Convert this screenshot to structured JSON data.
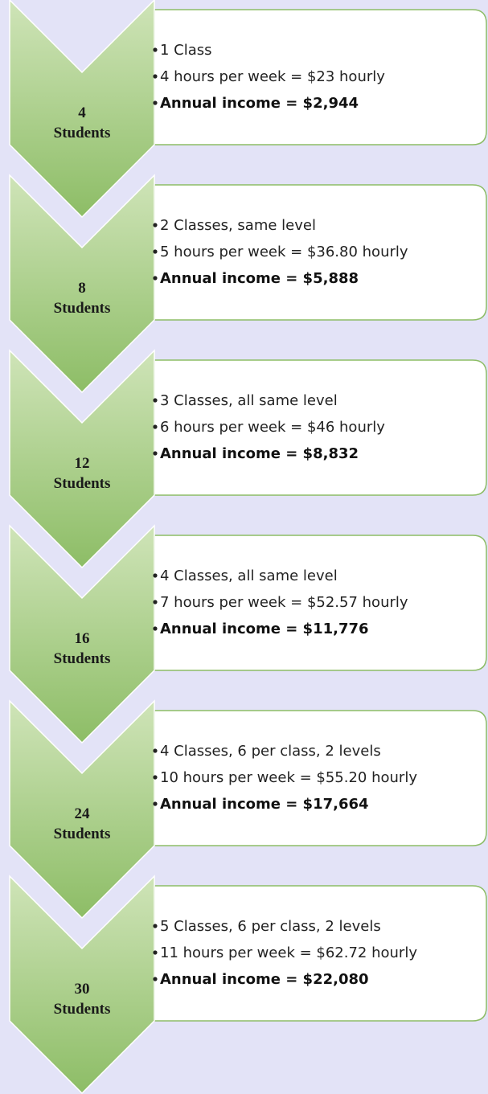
{
  "stages": [
    {
      "count": "4",
      "unit": "Students",
      "bullets": [
        "1 Class",
        "4 hours per week = $23 hourly",
        "Annual income = $2,944"
      ]
    },
    {
      "count": "8",
      "unit": "Students",
      "bullets": [
        "2 Classes, same level",
        "5 hours per week = $36.80 hourly",
        "Annual income = $5,888"
      ]
    },
    {
      "count": "12",
      "unit": "Students",
      "bullets": [
        "3 Classes, all same level",
        "6 hours per week = $46 hourly",
        "Annual income = $8,832"
      ]
    },
    {
      "count": "16",
      "unit": "Students",
      "bullets": [
        "4 Classes, all same level",
        "7 hours per week = $52.57 hourly",
        "Annual income = $11,776"
      ]
    },
    {
      "count": "24",
      "unit": "Students",
      "bullets": [
        "4 Classes, 6 per class, 2 levels",
        "10 hours per week = $55.20 hourly",
        "Annual income = $17,664"
      ]
    },
    {
      "count": "30",
      "unit": "Students",
      "bullets": [
        "5 Classes, 6 per class, 2 levels",
        "11 hours per week = $62.72 hourly",
        "Annual income = $22,080"
      ]
    }
  ]
}
